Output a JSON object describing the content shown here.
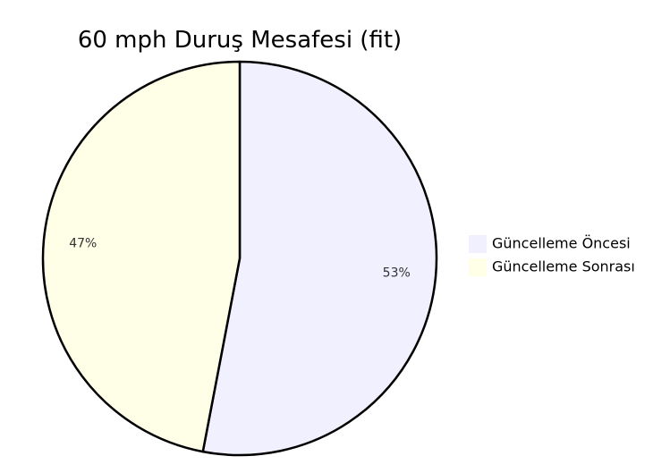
{
  "chart_data": {
    "type": "pie",
    "title": "60 mph Duruş Mesafesi (fit)",
    "categories": [
      "Güncelleme Öncesi",
      "Güncelleme Sonrası"
    ],
    "values": [
      53,
      47
    ],
    "labels": [
      "53%",
      "47%"
    ],
    "colors": [
      "#f0f0ff",
      "#ffffe8"
    ],
    "stroke_color": "#000000",
    "legend_position": "right"
  }
}
